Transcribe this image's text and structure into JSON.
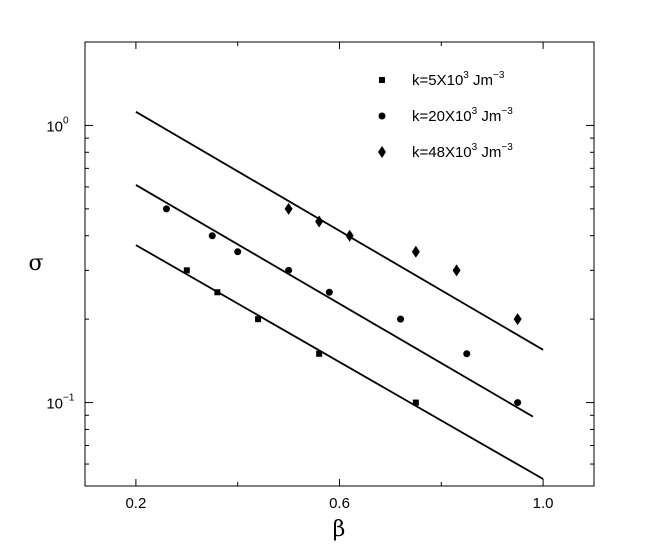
{
  "chart_data": {
    "type": "scatter",
    "xlabel": "β",
    "ylabel": "σ",
    "xscale": "linear",
    "yscale": "log",
    "xlim": [
      0.1,
      1.1
    ],
    "ylim": [
      0.05,
      2.0
    ],
    "x_ticks": [
      0.2,
      0.6,
      1.0
    ],
    "x_tick_labels": [
      "0.2",
      "0.6",
      "1.0"
    ],
    "x_minor_ticks": [
      0.4,
      0.8
    ],
    "y_ticks": [
      0.1,
      1.0
    ],
    "y_tick_labels": [
      {
        "base": "10",
        "exp": "−1"
      },
      {
        "base": "10",
        "exp": "0"
      }
    ],
    "legend_position": "top-right",
    "series": [
      {
        "name": "k=5X10^3 Jm^-3",
        "legend": {
          "main": "k=5X10",
          "sup1": "3",
          "mid": " Jm",
          "sup2": "−3"
        },
        "marker": "square",
        "color": "#000000",
        "x": [
          0.3,
          0.36,
          0.44,
          0.56,
          0.75
        ],
        "y": [
          0.3,
          0.25,
          0.2,
          0.15,
          0.1
        ],
        "fit": {
          "x": [
            0.2,
            1.0
          ],
          "y": [
            0.37,
            0.053
          ]
        }
      },
      {
        "name": "k=20X10^3 Jm^-3",
        "legend": {
          "main": "k=20X10",
          "sup1": "3",
          "mid": " Jm",
          "sup2": "−3"
        },
        "marker": "circle",
        "color": "#000000",
        "x": [
          0.26,
          0.35,
          0.4,
          0.5,
          0.58,
          0.72,
          0.85,
          0.95
        ],
        "y": [
          0.5,
          0.4,
          0.35,
          0.3,
          0.25,
          0.2,
          0.15,
          0.1
        ],
        "fit": {
          "x": [
            0.2,
            0.98
          ],
          "y": [
            0.61,
            0.089
          ]
        }
      },
      {
        "name": "k=48X10^3 Jm^-3",
        "legend": {
          "main": "k=48X10",
          "sup1": "3",
          "mid": " Jm",
          "sup2": "−3"
        },
        "marker": "diamond",
        "color": "#000000",
        "x": [
          0.5,
          0.56,
          0.62,
          0.75,
          0.83,
          0.95
        ],
        "y": [
          0.5,
          0.45,
          0.4,
          0.35,
          0.3,
          0.2
        ],
        "fit": {
          "x": [
            0.2,
            1.0
          ],
          "y": [
            1.12,
            0.155
          ]
        }
      }
    ]
  }
}
